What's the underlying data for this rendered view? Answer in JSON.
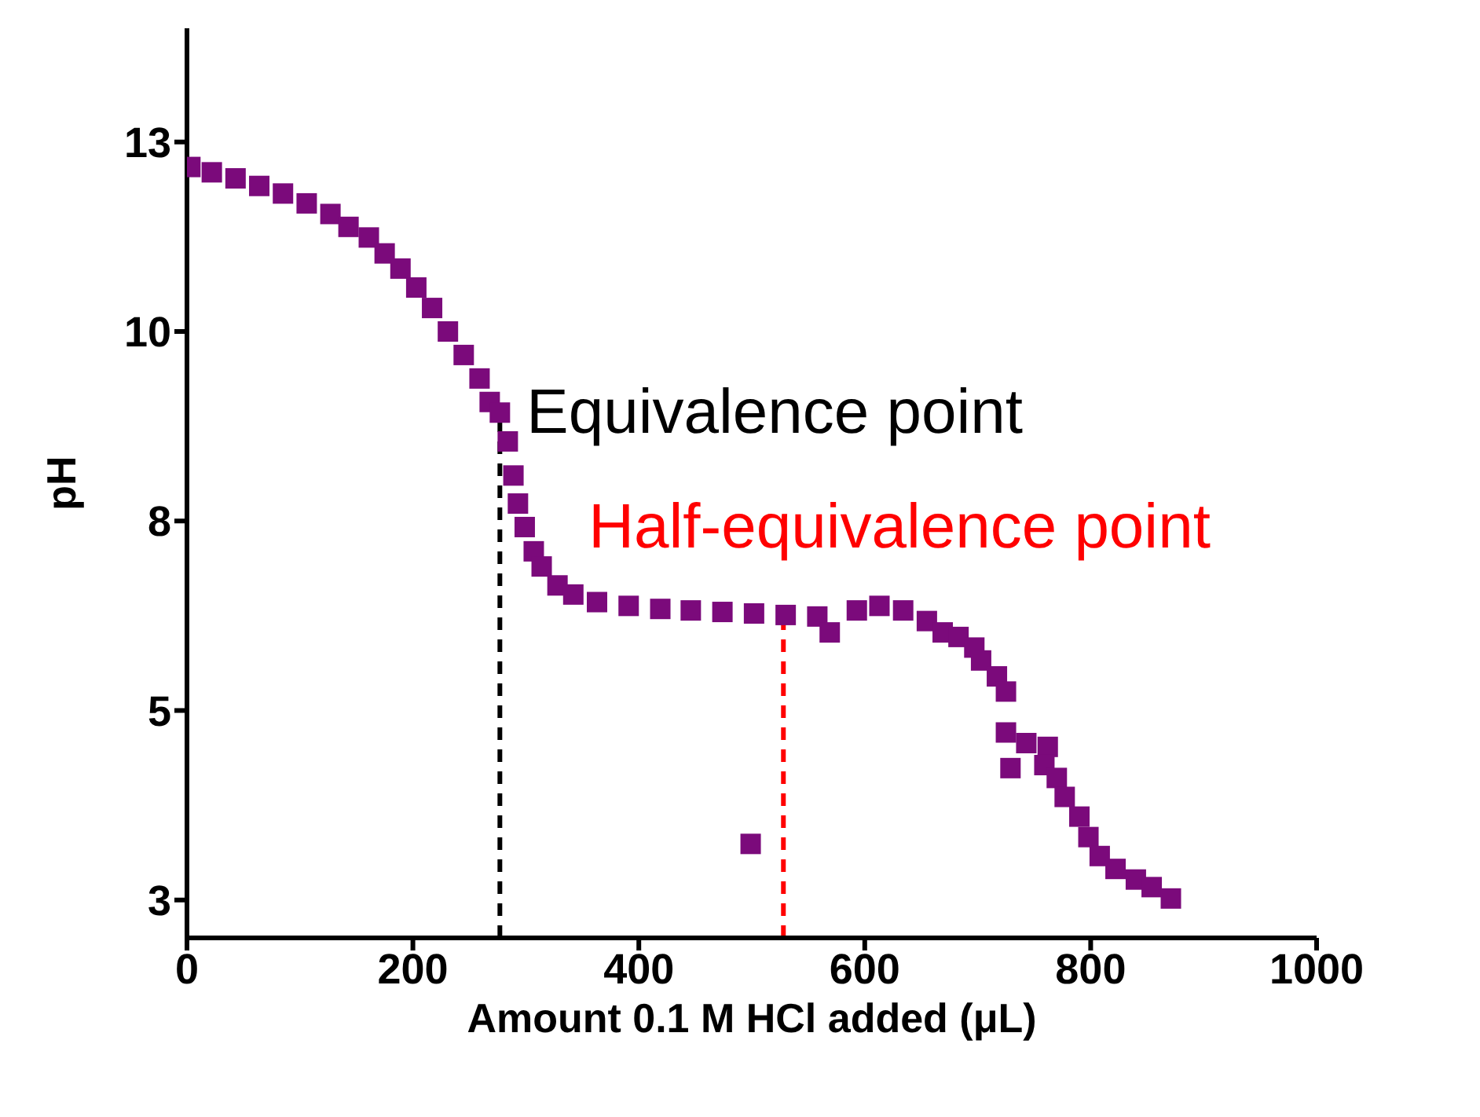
{
  "chart_data": {
    "type": "scatter",
    "xlabel": "Amount 0.1 M HCl added (μL)",
    "ylabel": "pH",
    "xlim": [
      0,
      1000
    ],
    "xticks": [
      0,
      200,
      400,
      600,
      800,
      1000
    ],
    "ylim": [
      2.5,
      14.5
    ],
    "yticks": [
      {
        "value": 3,
        "label": "3"
      },
      {
        "value": 5.5,
        "label": "5"
      },
      {
        "value": 8,
        "label": "8"
      },
      {
        "value": 10.5,
        "label": "10"
      },
      {
        "value": 13,
        "label": "13"
      }
    ],
    "marker": "square",
    "series": [
      {
        "color": "#7b0a7b",
        "x": [
          3,
          22,
          43,
          64,
          85,
          106,
          127,
          143,
          161,
          175,
          189,
          203,
          217,
          231,
          245,
          259,
          268,
          277,
          284,
          289,
          293,
          299,
          307,
          314,
          328,
          342,
          363,
          391,
          419,
          446,
          474,
          499,
          502,
          530,
          558,
          569,
          593,
          613,
          634,
          655,
          669,
          683,
          697,
          703,
          717,
          725,
          729,
          725,
          743,
          762,
          759,
          770,
          777,
          790,
          798,
          808,
          822,
          840,
          854,
          871
        ],
        "values": [
          12.67,
          12.6,
          12.52,
          12.42,
          12.32,
          12.19,
          12.05,
          11.88,
          11.74,
          11.53,
          11.33,
          11.08,
          10.81,
          10.5,
          10.19,
          9.88,
          9.57,
          9.43,
          9.05,
          8.6,
          8.23,
          7.92,
          7.6,
          7.4,
          7.15,
          7.03,
          6.93,
          6.88,
          6.84,
          6.82,
          6.8,
          3.74,
          6.78,
          6.76,
          6.74,
          6.53,
          6.82,
          6.88,
          6.82,
          6.68,
          6.53,
          6.47,
          6.33,
          6.16,
          5.95,
          5.75,
          4.74,
          5.21,
          5.07,
          5.02,
          4.78,
          4.61,
          4.36,
          4.1,
          3.83,
          3.58,
          3.41,
          3.27,
          3.17,
          3.02
        ]
      }
    ],
    "ref_lines": [
      {
        "axis": "x",
        "value": 277,
        "label": "Equivalence point",
        "color": "#000000",
        "line_style": "dashed"
      },
      {
        "axis": "x",
        "value": 528,
        "label": "Half-equivalence point",
        "color": "#ff0000",
        "line_style": "dashed"
      }
    ]
  }
}
